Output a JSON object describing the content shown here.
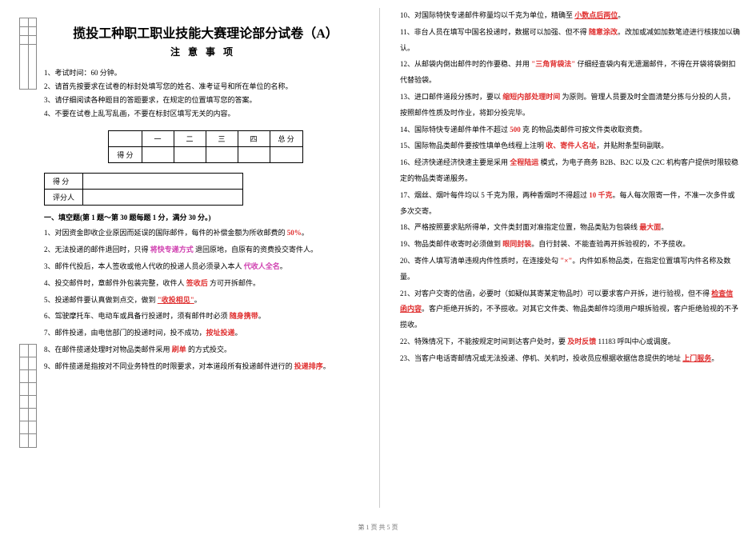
{
  "title": "揽投工种职工职业技能大赛理论部分试卷（A）",
  "subtitle": "注意事项",
  "notices": [
    "1、考试时间：60 分钟。",
    "2、请首先按要求在试卷的标封处填写您的姓名、准考证号和所在单位的名称。",
    "3、请仔细阅读各种题目的答题要求，在规定的位置填写您的答案。",
    "4、不要在试卷上乱写乱画，不要在标封区填写无关的内容。"
  ],
  "scoreTable": {
    "cols": [
      "",
      "一",
      "二",
      "三",
      "四",
      "总 分"
    ],
    "rowLabel": "得 分"
  },
  "subTable": {
    "r1": "得  分",
    "r2": "评分人"
  },
  "sectionHead": "一、填空题(第 1 题～第 30 题每题 1 分，满分 30 分。)",
  "leftQ": [
    {
      "n": "1、",
      "pre": "对因资金即收企业原因而延误的国际邮件，每件的补偿金额为所收邮费的 ",
      "hl": "50%",
      "cls": "hl-red",
      "post": "。"
    },
    {
      "n": "2、",
      "pre": "无法投递的邮件退回时，只得 ",
      "hl": "将快专递方式",
      "cls": "hl-pink",
      "post": " 退回原地，自原有的资费投交寄件人。"
    },
    {
      "n": "3、",
      "pre": "邮件代投后，本人签收或他人代收的投递人员必须录入本人 ",
      "hl": "代收人全名",
      "cls": "hl-pink",
      "post": "。"
    },
    {
      "n": "4、",
      "pre": "投交邮件时，章邮件外包装完整，收件人 ",
      "hl": "签收后",
      "cls": "hl-red",
      "post": " 方可开拆邮件。"
    },
    {
      "n": "5、",
      "pre": "投递邮件要认真做到点交，做到 ",
      "hl": "\"收投相见\"",
      "cls": "hl-red u",
      "post": "。"
    },
    {
      "n": "6、",
      "pre": "驾驶摩托车、电动车或具备行投递时，须有邮件时必须 ",
      "hl": "随身携带",
      "cls": "hl-red",
      "post": "。"
    },
    {
      "n": "7、",
      "pre": "邮件投递，由电信部门的投递时间，投不成功，",
      "hl": "按址投递",
      "cls": "hl-red",
      "post": "。"
    },
    {
      "n": "8、",
      "pre": "在邮件揽递处理时对物品类邮件采用 ",
      "hl": "刷单",
      "cls": "hl-red",
      "post": " 的方式投交。"
    },
    {
      "n": "9、",
      "pre": "邮件揽递是指按对不同业务特性的时限要求，对本道段所有投递邮件进行的 ",
      "hl": "投递排序",
      "cls": "hl-red",
      "post": "。"
    }
  ],
  "rightQ": [
    {
      "n": "10、",
      "pre": "对国际特快专递邮件称量均以千克为单位，精确至 ",
      "hl": "小数点后两位",
      "cls": "hl-red u",
      "post": "。"
    },
    {
      "n": "11、",
      "pre": "非台人员在填写中国名投递时，数据可以加强、但不得 ",
      "hl": "随意涂改",
      "cls": "hl-red",
      "post": "。改加或减如加数笔迹进行核拨加以确认。"
    },
    {
      "n": "12、",
      "pre": "从邮袋内倒出邮件时的作要稳、并用 ",
      "hl": "\"三角背袋法\"",
      "cls": "hl-red",
      "post": " 仔细经查袋内有无遗漏邮件，不得在开袋将袋倒扣代替验袋。"
    },
    {
      "n": "13、",
      "pre": "进口邮件道段分拣时，要以 ",
      "hl": "缩短内部处理时间",
      "cls": "hl-red",
      "post": " 为原则。管理人员要及时全面清楚分拣与分投的人员，按照邮件性质及时作业，将卸分投完毕。"
    },
    {
      "n": "14、",
      "pre": "国际特快专递邮件单件不超过 ",
      "hl": "500",
      "cls": "hl-red",
      "post": " 克 的物品类邮件可按文件类收取资费。"
    },
    {
      "n": "15、",
      "pre": "国际物品类邮件要按性填单色线程上注明 ",
      "hl": "收、寄件人名址",
      "cls": "hl-red",
      "post": "，并贴附条型码副联。"
    },
    {
      "n": "16、",
      "pre": "经济快递经济快速主要是采用 ",
      "hl": "全程陆运",
      "cls": "hl-red",
      "post": " 模式，为电子商务 B2B、B2C 以及 C2C 机构客户提供时限较稳定的物品类寄递服务。"
    },
    {
      "n": "17、",
      "pre": "烟丝、烟叶每件均以 5 千克为限，两种香烟时不得超过 ",
      "hl": "10 千克",
      "cls": "hl-red",
      "post": "。每人每次限寄一件，不准一次多件或多次交寄。"
    },
    {
      "n": "18、",
      "pre": "严格按照要求贴所得单，文件类封面对准指定位置，物品类贴为包袋线 ",
      "hl": "最大面",
      "cls": "hl-red",
      "post": "。"
    },
    {
      "n": "19、",
      "pre": "物品类邮件收寄时必须做到 ",
      "hl": "眼同封装",
      "cls": "hl-red",
      "post": "。自行封装、不能查验再开拆验视的，不予揽收。"
    },
    {
      "n": "20、",
      "pre": "寄件人填写清单违规内件性质时，在连接处勾 ",
      "hl": "\"×\"",
      "cls": "hl-red",
      "post": "。内件如系物品类，在指定位置填写内件名称及数量。"
    },
    {
      "n": "21、",
      "pre": "对客户交寄的信函，必要时（如疑似其寄某定物品时）可以要求客户开拆，进行验视，但不得 ",
      "hl": "检查信函内容",
      "cls": "hl-red u",
      "post": "。客户拒绝开拆的，不予揽收。对其它文件类、物品类邮件均须用户眼拆验视，客户拒绝验视的不予揽收。"
    },
    {
      "n": "22、",
      "pre": "特殊情况下，不能按规定时间到达客户处时，要 ",
      "hl": "及时反馈",
      "cls": "hl-red",
      "post": " 11183 呼叫中心或调度。"
    },
    {
      "n": "23、",
      "pre": "当客户电话寄邮情况或无法投递、停机、关机时，投收员应根据收据信息提供的地址 ",
      "hl": "上门服务",
      "cls": "hl-red u",
      "post": "。"
    }
  ],
  "footer": "第 1 页 共 5 页"
}
